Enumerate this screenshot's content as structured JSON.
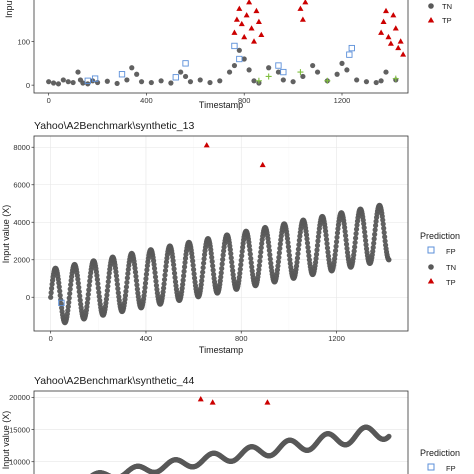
{
  "chart_data": [
    {
      "type": "scatter",
      "title": "",
      "xlabel": "Timestamp",
      "ylabel": "Input",
      "xlim": [
        -60,
        1470
      ],
      "ylim": [
        -18,
        200
      ],
      "xticks": [
        0,
        400,
        800,
        1200
      ],
      "yticks": [
        0,
        100
      ],
      "legend": {
        "title": "",
        "position": "right",
        "entries": [
          {
            "label": "TN",
            "shape": "circle",
            "color": "#595959"
          },
          {
            "label": "TP",
            "shape": "triangle",
            "color": "#cc0000"
          }
        ]
      },
      "series": [
        {
          "name": "TN",
          "shape": "circle",
          "color": "#595959",
          "points": [
            [
              0,
              8
            ],
            [
              20,
              5
            ],
            [
              40,
              3
            ],
            [
              60,
              12
            ],
            [
              80,
              8
            ],
            [
              100,
              6
            ],
            [
              120,
              30
            ],
            [
              130,
              12
            ],
            [
              140,
              5
            ],
            [
              160,
              3
            ],
            [
              180,
              10
            ],
            [
              200,
              6
            ],
            [
              240,
              9
            ],
            [
              280,
              4
            ],
            [
              320,
              12
            ],
            [
              340,
              40
            ],
            [
              360,
              25
            ],
            [
              380,
              8
            ],
            [
              420,
              6
            ],
            [
              460,
              10
            ],
            [
              500,
              5
            ],
            [
              540,
              30
            ],
            [
              560,
              20
            ],
            [
              580,
              8
            ],
            [
              620,
              12
            ],
            [
              660,
              6
            ],
            [
              700,
              10
            ],
            [
              740,
              30
            ],
            [
              760,
              45
            ],
            [
              780,
              80
            ],
            [
              800,
              60
            ],
            [
              820,
              35
            ],
            [
              840,
              10
            ],
            [
              860,
              5
            ],
            [
              900,
              40
            ],
            [
              940,
              30
            ],
            [
              960,
              12
            ],
            [
              1000,
              8
            ],
            [
              1040,
              20
            ],
            [
              1080,
              45
            ],
            [
              1100,
              30
            ],
            [
              1140,
              10
            ],
            [
              1180,
              25
            ],
            [
              1200,
              50
            ],
            [
              1220,
              35
            ],
            [
              1260,
              12
            ],
            [
              1300,
              8
            ],
            [
              1340,
              6
            ],
            [
              1360,
              10
            ],
            [
              1380,
              30
            ],
            [
              1420,
              12
            ]
          ]
        },
        {
          "name": "TP",
          "shape": "triangle",
          "color": "#cc0000",
          "points": [
            [
              760,
              120
            ],
            [
              770,
              150
            ],
            [
              780,
              175
            ],
            [
              790,
              140
            ],
            [
              800,
              110
            ],
            [
              810,
              160
            ],
            [
              820,
              190
            ],
            [
              830,
              130
            ],
            [
              840,
              100
            ],
            [
              850,
              170
            ],
            [
              860,
              145
            ],
            [
              870,
              115
            ],
            [
              1030,
              175
            ],
            [
              1040,
              150
            ],
            [
              1050,
              190
            ],
            [
              1360,
              120
            ],
            [
              1370,
              145
            ],
            [
              1380,
              170
            ],
            [
              1390,
              110
            ],
            [
              1400,
              95
            ],
            [
              1410,
              160
            ],
            [
              1420,
              130
            ],
            [
              1430,
              85
            ],
            [
              1440,
              100
            ],
            [
              1450,
              70
            ]
          ]
        },
        {
          "name": "FP",
          "shape": "square",
          "color": "#5b8fd9",
          "points": [
            [
              160,
              10
            ],
            [
              190,
              15
            ],
            [
              300,
              25
            ],
            [
              520,
              18
            ],
            [
              560,
              50
            ],
            [
              760,
              90
            ],
            [
              780,
              60
            ],
            [
              940,
              45
            ],
            [
              960,
              30
            ],
            [
              1230,
              70
            ],
            [
              1240,
              85
            ]
          ]
        },
        {
          "name": "FN",
          "shape": "plus",
          "color": "#7fbf3f",
          "points": [
            [
              860,
              10
            ],
            [
              900,
              20
            ],
            [
              1030,
              30
            ],
            [
              1140,
              10
            ],
            [
              1420,
              15
            ]
          ]
        }
      ]
    },
    {
      "type": "scatter",
      "title": "Yahoo\\A2Benchmark\\synthetic_13",
      "xlabel": "Timestamp",
      "ylabel": "Input value (X)",
      "xlim": [
        -70,
        1500
      ],
      "ylim": [
        -1800,
        8600
      ],
      "xticks": [
        0,
        400,
        800,
        1200
      ],
      "yticks": [
        0,
        2000,
        4000,
        6000,
        8000
      ],
      "grid": true,
      "legend": {
        "title": "Prediction",
        "position": "right",
        "entries": [
          {
            "label": "FP",
            "shape": "square",
            "color": "#5b8fd9"
          },
          {
            "label": "TN",
            "shape": "circle",
            "color": "#595959"
          },
          {
            "label": "TP",
            "shape": "triangle",
            "color": "#cc0000"
          }
        ]
      },
      "signal": {
        "n": 1421,
        "period": 80,
        "base_start": 0,
        "base_end": 3500,
        "amp_start": 1500,
        "amp_end": 1500
      },
      "tp_points": [
        [
          655,
          8100
        ],
        [
          890,
          7050
        ]
      ],
      "fp_points": [
        [
          45,
          -300
        ]
      ]
    },
    {
      "type": "scatter",
      "title": "Yahoo\\A2Benchmark\\synthetic_44",
      "xlabel": "",
      "ylabel": "Input value (X)",
      "xlim": [
        -70,
        1500
      ],
      "ylim": [
        7000,
        21000
      ],
      "xticks": [],
      "yticks": [
        10000,
        15000,
        20000
      ],
      "grid": true,
      "legend": {
        "title": "Prediction",
        "position": "right",
        "entries": [
          {
            "label": "FP",
            "shape": "square",
            "color": "#5b8fd9"
          }
        ]
      },
      "signal": {
        "n": 1421,
        "period": 160,
        "base_start": 6500,
        "base_end": 14800,
        "amp_start": 500,
        "amp_end": 1200
      },
      "tp_points": [
        [
          630,
          19700
        ],
        [
          680,
          19200
        ],
        [
          910,
          19200
        ]
      ],
      "fp_points": []
    }
  ]
}
